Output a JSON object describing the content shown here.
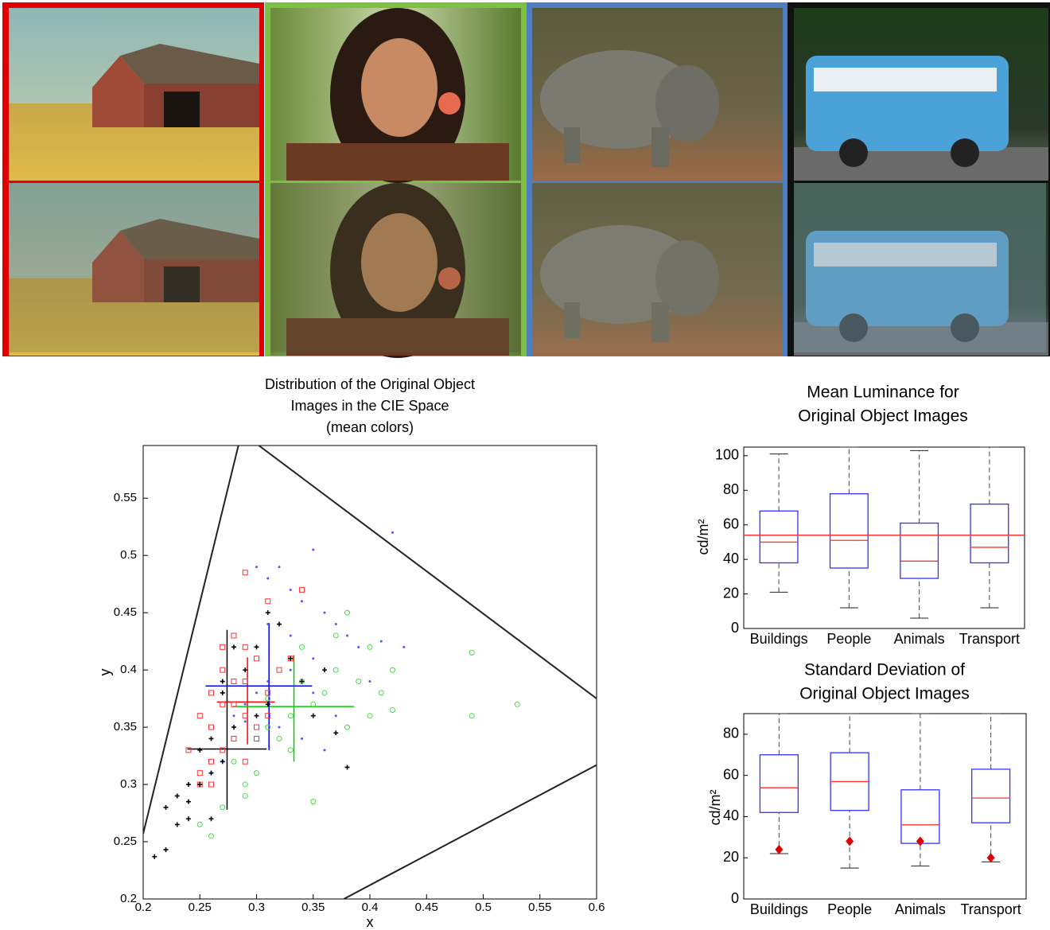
{
  "chart_data": [
    {
      "type": "scatter",
      "title": [
        "Distribution of the Original Object",
        "Images in the CIE Space",
        "(mean colors)"
      ],
      "x_label": "x",
      "y_label": "y",
      "xlim": [
        0.2,
        0.6
      ],
      "ylim": [
        0.2,
        0.596
      ],
      "xticks": [
        0.2,
        0.25,
        0.3,
        0.35,
        0.4,
        0.45,
        0.5,
        0.55,
        0.6
      ],
      "yticks": [
        0.2,
        0.25,
        0.3,
        0.35,
        0.4,
        0.45,
        0.5,
        0.55
      ],
      "series": [
        {
          "color": "#ff3333",
          "marker": "square",
          "x": [
            0.29,
            0.31,
            0.28,
            0.29,
            0.3,
            0.27,
            0.26,
            0.28,
            0.25,
            0.24,
            0.26,
            0.27,
            0.29,
            0.3,
            0.31,
            0.28,
            0.26,
            0.25,
            0.27,
            0.32,
            0.33,
            0.3,
            0.29,
            0.34,
            0.27,
            0.26,
            0.28,
            0.31,
            0.25,
            0.29
          ],
          "values": [
            0.485,
            0.46,
            0.43,
            0.42,
            0.41,
            0.4,
            0.38,
            0.39,
            0.36,
            0.33,
            0.35,
            0.37,
            0.36,
            0.35,
            0.38,
            0.34,
            0.32,
            0.3,
            0.33,
            0.4,
            0.41,
            0.34,
            0.32,
            0.47,
            0.42,
            0.3,
            0.37,
            0.36,
            0.31,
            0.39
          ]
        },
        {
          "color": "#44dd44",
          "marker": "circle",
          "x": [
            0.49,
            0.53,
            0.49,
            0.42,
            0.42,
            0.4,
            0.39,
            0.38,
            0.37,
            0.36,
            0.35,
            0.34,
            0.33,
            0.32,
            0.31,
            0.3,
            0.29,
            0.28,
            0.27,
            0.26,
            0.25,
            0.29,
            0.35,
            0.38,
            0.41,
            0.4,
            0.34,
            0.33,
            0.37,
            0.31
          ],
          "values": [
            0.415,
            0.37,
            0.36,
            0.4,
            0.365,
            0.42,
            0.39,
            0.45,
            0.4,
            0.38,
            0.285,
            0.42,
            0.36,
            0.34,
            0.35,
            0.31,
            0.3,
            0.32,
            0.28,
            0.255,
            0.265,
            0.29,
            0.37,
            0.35,
            0.38,
            0.36,
            0.39,
            0.33,
            0.43,
            0.375
          ]
        },
        {
          "color": "#5555ff",
          "marker": "dot",
          "x": [
            0.42,
            0.35,
            0.3,
            0.31,
            0.32,
            0.33,
            0.34,
            0.36,
            0.37,
            0.38,
            0.39,
            0.41,
            0.43,
            0.35,
            0.33,
            0.31,
            0.3,
            0.29,
            0.28,
            0.32,
            0.34,
            0.36,
            0.27,
            0.26,
            0.4,
            0.37,
            0.33,
            0.31,
            0.29,
            0.35
          ],
          "values": [
            0.52,
            0.505,
            0.49,
            0.48,
            0.49,
            0.47,
            0.46,
            0.45,
            0.44,
            0.43,
            0.42,
            0.425,
            0.42,
            0.41,
            0.4,
            0.39,
            0.38,
            0.37,
            0.36,
            0.35,
            0.34,
            0.33,
            0.32,
            0.31,
            0.39,
            0.36,
            0.43,
            0.44,
            0.355,
            0.38
          ]
        },
        {
          "color": "#000000",
          "marker": "plus",
          "x": [
            0.21,
            0.22,
            0.23,
            0.22,
            0.24,
            0.23,
            0.25,
            0.24,
            0.26,
            0.25,
            0.27,
            0.26,
            0.28,
            0.27,
            0.29,
            0.3,
            0.31,
            0.32,
            0.33,
            0.34,
            0.35,
            0.36,
            0.38,
            0.37,
            0.31,
            0.28,
            0.26,
            0.24,
            0.27,
            0.3
          ],
          "values": [
            0.237,
            0.243,
            0.265,
            0.28,
            0.27,
            0.29,
            0.3,
            0.285,
            0.31,
            0.33,
            0.32,
            0.34,
            0.35,
            0.38,
            0.4,
            0.42,
            0.45,
            0.44,
            0.41,
            0.39,
            0.36,
            0.4,
            0.315,
            0.345,
            0.37,
            0.42,
            0.27,
            0.3,
            0.39,
            0.36
          ]
        }
      ],
      "lines": [
        {
          "color": "#222222",
          "x": [
            0.2,
            0.284
          ],
          "values": [
            0.257,
            0.596
          ]
        },
        {
          "color": "#222222",
          "x": [
            0.302,
            0.6
          ],
          "values": [
            0.596,
            0.375
          ]
        },
        {
          "color": "#222222",
          "x": [
            0.377,
            0.6
          ],
          "values": [
            0.2,
            0.317
          ]
        },
        {
          "color": "#ff0000",
          "x": [
            0.265,
            0.316
          ],
          "values": [
            0.372,
            0.372
          ]
        },
        {
          "color": "#ff0000",
          "x": [
            0.292,
            0.292
          ],
          "values": [
            0.411,
            0.335
          ]
        },
        {
          "color": "#00cc00",
          "x": [
            0.279,
            0.386
          ],
          "values": [
            0.368,
            0.368
          ]
        },
        {
          "color": "#00cc00",
          "x": [
            0.333,
            0.333
          ],
          "values": [
            0.413,
            0.32
          ]
        },
        {
          "color": "#0000ff",
          "x": [
            0.255,
            0.349
          ],
          "values": [
            0.386,
            0.386
          ]
        },
        {
          "color": "#0000ff",
          "x": [
            0.311,
            0.311
          ],
          "values": [
            0.441,
            0.33
          ]
        },
        {
          "color": "#000000",
          "x": [
            0.239,
            0.309
          ],
          "values": [
            0.331,
            0.331
          ]
        },
        {
          "color": "#000000",
          "x": [
            0.274,
            0.274
          ],
          "values": [
            0.435,
            0.278
          ]
        }
      ]
    },
    {
      "type": "box",
      "title": [
        "Mean Luminance for",
        "Original Object Images"
      ],
      "y_label": "cd/m²",
      "categories": [
        "Buildings",
        "People",
        "Animals",
        "Transport"
      ],
      "ylim": [
        0,
        105
      ],
      "yticks": [
        0,
        20,
        40,
        60,
        80,
        100
      ],
      "whisker_low": [
        21,
        12,
        6,
        12
      ],
      "q1": [
        38,
        35,
        29,
        38
      ],
      "median": [
        50,
        51,
        39,
        47
      ],
      "q3": [
        68,
        78,
        61,
        72
      ],
      "whisker_high": [
        101,
        105,
        103,
        105
      ],
      "reference_line": 54,
      "box_color": "#3333ff",
      "median_color": "#ff3333"
    },
    {
      "type": "box",
      "title": [
        "Standard Deviation of",
        "Original Object Images"
      ],
      "y_label": "cd/m²",
      "categories": [
        "Buildings",
        "People",
        "Animals",
        "Transport"
      ],
      "ylim": [
        0,
        90
      ],
      "yticks": [
        0,
        20,
        40,
        60,
        80
      ],
      "whisker_low": [
        22,
        15,
        16,
        18
      ],
      "q1": [
        42,
        43,
        27,
        37
      ],
      "median": [
        54,
        57,
        36,
        49
      ],
      "q3": [
        70,
        71,
        53,
        63
      ],
      "whisker_high": [
        90,
        90,
        90,
        90
      ],
      "outliers": [
        24,
        28,
        28,
        20
      ],
      "box_color": "#3333ff",
      "median_color": "#ff3333"
    }
  ]
}
